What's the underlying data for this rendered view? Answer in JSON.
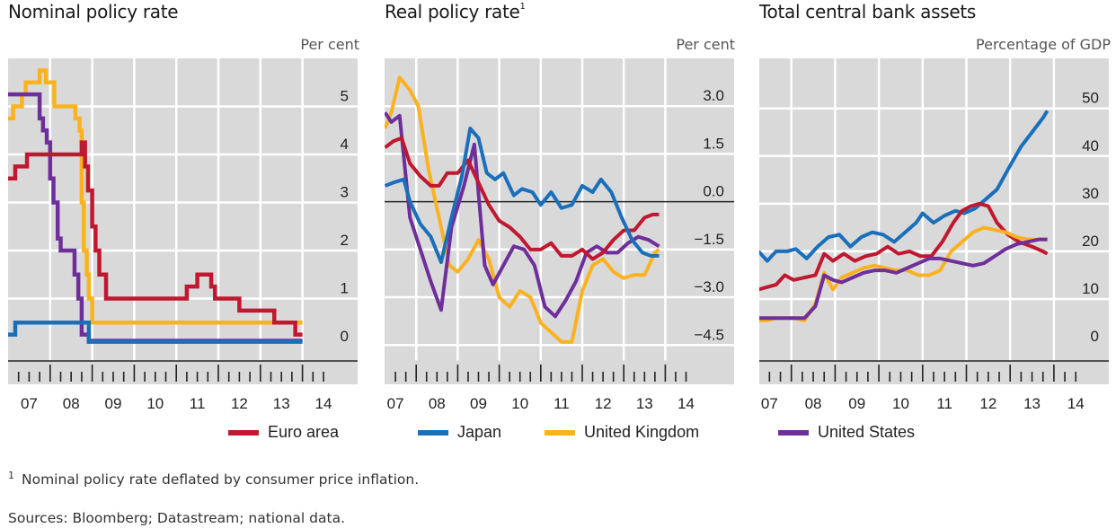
{
  "footnote_marker": "1",
  "footnote": "Nominal policy rate deflated by consumer price inflation.",
  "sources": "Sources: Bloomberg; Datastream; national data.",
  "legend": [
    {
      "name": "Euro area",
      "color": "#c0182f"
    },
    {
      "name": "Japan",
      "color": "#1a6fba"
    },
    {
      "name": "United Kingdom",
      "color": "#fbb21f"
    },
    {
      "name": "United States",
      "color": "#6f2f9b"
    }
  ],
  "chart_data": [
    {
      "type": "line",
      "step": true,
      "title": "Nominal policy rate",
      "title_sup": "",
      "unit": "Per cent",
      "x_tick_labels": [
        "07",
        "08",
        "09",
        "10",
        "11",
        "12",
        "13",
        "14"
      ],
      "xlim": [
        2007.0,
        2014.25
      ],
      "ylim": [
        -0.3,
        6.0
      ],
      "yticks": [
        0,
        1,
        2,
        3,
        4,
        5
      ],
      "ytick_labels": [
        "0",
        "1",
        "2",
        "3",
        "4",
        "5"
      ],
      "zero_line": -0.25,
      "series": [
        {
          "name": "United Kingdom",
          "color": "#fbb21f",
          "x": [
            2007.0,
            2007.12,
            2007.33,
            2007.42,
            2007.75,
            2007.9,
            2008.1,
            2008.6,
            2008.7,
            2008.75,
            2008.8,
            2008.87,
            2008.92,
            2009.0,
            2009.17,
            2014.0
          ],
          "y": [
            4.75,
            5.0,
            5.25,
            5.5,
            5.75,
            5.5,
            5.0,
            4.75,
            4.5,
            3.0,
            2.0,
            1.5,
            1.0,
            0.5,
            0.5,
            0.5
          ]
        },
        {
          "name": "United States",
          "color": "#6f2f9b",
          "x": [
            2007.0,
            2007.62,
            2007.75,
            2007.83,
            2007.92,
            2008.0,
            2008.08,
            2008.18,
            2008.25,
            2008.33,
            2008.58,
            2008.67,
            2008.75,
            2008.92,
            2009.0,
            2014.0
          ],
          "y": [
            5.25,
            5.25,
            4.75,
            4.5,
            4.25,
            3.5,
            3.0,
            2.25,
            2.0,
            2.0,
            1.5,
            1.0,
            0.25,
            0.12,
            0.12,
            0.12
          ]
        },
        {
          "name": "Euro area",
          "color": "#c0182f",
          "x": [
            2007.0,
            2007.17,
            2007.45,
            2008.5,
            2008.75,
            2008.83,
            2008.9,
            2009.0,
            2009.08,
            2009.17,
            2009.33,
            2011.25,
            2011.5,
            2011.83,
            2011.92,
            2012.5,
            2013.33,
            2013.83,
            2014.0
          ],
          "y": [
            3.5,
            3.75,
            4.0,
            4.0,
            4.25,
            3.75,
            3.25,
            2.5,
            2.0,
            1.5,
            1.0,
            1.25,
            1.5,
            1.25,
            1.0,
            0.75,
            0.5,
            0.25,
            0.25
          ]
        },
        {
          "name": "Japan",
          "color": "#1a6fba",
          "x": [
            2007.0,
            2007.17,
            2008.83,
            2008.92,
            2014.0
          ],
          "y": [
            0.25,
            0.5,
            0.5,
            0.1,
            0.1
          ]
        }
      ]
    },
    {
      "type": "line",
      "step": false,
      "title": "Real policy rate",
      "title_sup": "1",
      "unit": "Per cent",
      "x_tick_labels": [
        "07",
        "08",
        "09",
        "10",
        "11",
        "12",
        "13",
        "14"
      ],
      "xlim": [
        2007.25,
        2014.58
      ],
      "ylim": [
        -5.0,
        4.5
      ],
      "yticks": [
        -4.5,
        -3.0,
        -1.5,
        0.0,
        1.5,
        3.0
      ],
      "ytick_labels": [
        "−4.5",
        "−3.0",
        "−1.5",
        "0.0",
        "1.5",
        "3.0"
      ],
      "zero_line": 0.0,
      "series": [
        {
          "name": "United Kingdom",
          "color": "#fbb21f",
          "x": [
            2007.25,
            2007.4,
            2007.6,
            2007.85,
            2008.05,
            2008.3,
            2008.55,
            2008.8,
            2009.0,
            2009.25,
            2009.5,
            2009.75,
            2010.0,
            2010.25,
            2010.5,
            2010.75,
            2011.0,
            2011.25,
            2011.5,
            2011.75,
            2012.0,
            2012.25,
            2012.5,
            2012.75,
            2013.0,
            2013.25,
            2013.5,
            2013.75,
            2013.85
          ],
          "y": [
            2.3,
            2.8,
            3.9,
            3.5,
            3.0,
            1.0,
            -0.5,
            -2.0,
            -2.2,
            -1.8,
            -1.2,
            -1.8,
            -3.0,
            -3.3,
            -2.8,
            -3.0,
            -3.8,
            -4.1,
            -4.4,
            -4.4,
            -2.8,
            -2.0,
            -1.8,
            -2.2,
            -2.4,
            -2.3,
            -2.3,
            -1.6,
            -1.5
          ]
        },
        {
          "name": "United States",
          "color": "#6f2f9b",
          "x": [
            2007.25,
            2007.4,
            2007.6,
            2007.85,
            2008.1,
            2008.35,
            2008.6,
            2008.85,
            2009.15,
            2009.4,
            2009.65,
            2009.85,
            2010.1,
            2010.35,
            2010.6,
            2010.85,
            2011.1,
            2011.35,
            2011.6,
            2011.85,
            2012.1,
            2012.35,
            2012.6,
            2012.85,
            2013.1,
            2013.35,
            2013.6,
            2013.85
          ],
          "y": [
            2.8,
            2.5,
            2.7,
            -0.5,
            -1.5,
            -2.5,
            -3.4,
            -0.8,
            0.5,
            1.8,
            -2.0,
            -2.6,
            -2.0,
            -1.4,
            -1.5,
            -2.0,
            -3.3,
            -3.6,
            -3.1,
            -2.5,
            -1.6,
            -1.4,
            -1.6,
            -1.6,
            -1.3,
            -1.1,
            -1.2,
            -1.4
          ]
        },
        {
          "name": "Euro area",
          "color": "#c0182f",
          "x": [
            2007.25,
            2007.45,
            2007.65,
            2007.85,
            2008.1,
            2008.35,
            2008.55,
            2008.75,
            2009.0,
            2009.25,
            2009.5,
            2009.75,
            2010.0,
            2010.25,
            2010.5,
            2010.75,
            2011.0,
            2011.25,
            2011.5,
            2011.75,
            2012.0,
            2012.25,
            2012.5,
            2012.75,
            2013.0,
            2013.25,
            2013.5,
            2013.7,
            2013.85
          ],
          "y": [
            1.7,
            1.9,
            2.0,
            1.2,
            0.8,
            0.5,
            0.5,
            0.9,
            0.9,
            1.3,
            0.6,
            -0.1,
            -0.6,
            -0.8,
            -1.1,
            -1.5,
            -1.5,
            -1.3,
            -1.7,
            -1.7,
            -1.5,
            -1.8,
            -1.6,
            -1.2,
            -0.9,
            -0.9,
            -0.5,
            -0.4,
            -0.4
          ]
        },
        {
          "name": "Japan",
          "color": "#1a6fba",
          "x": [
            2007.25,
            2007.45,
            2007.7,
            2007.85,
            2008.1,
            2008.35,
            2008.6,
            2008.85,
            2009.1,
            2009.3,
            2009.5,
            2009.7,
            2009.9,
            2010.1,
            2010.35,
            2010.55,
            2010.8,
            2011.0,
            2011.25,
            2011.5,
            2011.75,
            2012.0,
            2012.25,
            2012.45,
            2012.7,
            2012.95,
            2013.2,
            2013.45,
            2013.65,
            2013.85
          ],
          "y": [
            0.5,
            0.6,
            0.7,
            0.0,
            -0.7,
            -1.1,
            -1.9,
            -0.5,
            0.8,
            2.3,
            2.0,
            0.9,
            0.7,
            0.9,
            0.2,
            0.4,
            0.3,
            -0.1,
            0.3,
            -0.2,
            -0.1,
            0.5,
            0.3,
            0.7,
            0.3,
            -0.5,
            -1.2,
            -1.6,
            -1.7,
            -1.7
          ]
        }
      ]
    },
    {
      "type": "line",
      "step": false,
      "title": "Total central bank assets",
      "title_sup": "",
      "unit": "Percentage of GDP",
      "x_tick_labels": [
        "07",
        "08",
        "09",
        "10",
        "11",
        "12",
        "13",
        "14"
      ],
      "xlim": [
        2007.25,
        2014.58
      ],
      "ylim": [
        -3.0,
        60.5
      ],
      "yticks": [
        0,
        10,
        20,
        30,
        40,
        50
      ],
      "ytick_labels": [
        "0",
        "10",
        "20",
        "30",
        "40",
        "50"
      ],
      "zero_line": -3.0,
      "series": [
        {
          "name": "Japan",
          "color": "#1a6fba",
          "x": [
            2007.25,
            2007.45,
            2007.65,
            2007.9,
            2008.1,
            2008.35,
            2008.6,
            2008.85,
            2009.1,
            2009.35,
            2009.6,
            2009.85,
            2010.1,
            2010.35,
            2010.6,
            2010.85,
            2011.0,
            2011.25,
            2011.5,
            2011.75,
            2011.95,
            2012.2,
            2012.45,
            2012.7,
            2013.0,
            2013.25,
            2013.5,
            2013.75,
            2013.85
          ],
          "y": [
            20,
            18,
            20,
            20,
            20.5,
            18.5,
            21,
            23,
            23.5,
            21,
            23,
            24,
            23.5,
            22,
            24,
            26,
            28,
            26,
            27.5,
            28.5,
            28,
            29,
            31,
            33,
            38,
            42,
            45,
            48,
            49.5
          ]
        },
        {
          "name": "Euro area",
          "color": "#c0182f",
          "x": [
            2007.25,
            2007.45,
            2007.65,
            2007.85,
            2008.05,
            2008.3,
            2008.55,
            2008.75,
            2008.95,
            2009.2,
            2009.45,
            2009.7,
            2009.95,
            2010.2,
            2010.45,
            2010.7,
            2010.95,
            2011.2,
            2011.45,
            2011.7,
            2011.9,
            2012.1,
            2012.3,
            2012.5,
            2012.7,
            2012.95,
            2013.2,
            2013.5,
            2013.75,
            2013.85
          ],
          "y": [
            12,
            12.5,
            13,
            15,
            14,
            14.5,
            15,
            19.5,
            18,
            19.5,
            18,
            19,
            19.5,
            21,
            19.5,
            20,
            19,
            19,
            22,
            26,
            28.5,
            29.5,
            30,
            29.5,
            26,
            23.5,
            22,
            21,
            20,
            19.5
          ]
        },
        {
          "name": "United Kingdom",
          "color": "#fbb21f",
          "x": [
            2007.25,
            2007.45,
            2007.65,
            2007.85,
            2008.05,
            2008.3,
            2008.55,
            2008.75,
            2008.95,
            2009.15,
            2009.4,
            2009.65,
            2009.9,
            2010.15,
            2010.4,
            2010.65,
            2010.9,
            2011.15,
            2011.4,
            2011.65,
            2011.9,
            2012.15,
            2012.4,
            2012.65,
            2012.9,
            2013.15,
            2013.4,
            2013.65,
            2013.85
          ],
          "y": [
            5.5,
            5.5,
            6,
            6,
            6,
            5.5,
            9,
            15.5,
            12,
            14.5,
            15.5,
            16.5,
            17,
            16.5,
            16,
            16,
            15,
            15,
            16,
            20,
            22,
            24,
            25,
            24.5,
            24,
            23,
            22.5,
            22.5,
            22.5
          ]
        },
        {
          "name": "United States",
          "color": "#6f2f9b",
          "x": [
            2007.25,
            2007.45,
            2007.65,
            2007.85,
            2008.05,
            2008.3,
            2008.55,
            2008.75,
            2008.95,
            2009.15,
            2009.4,
            2009.65,
            2009.9,
            2010.15,
            2010.4,
            2010.65,
            2010.9,
            2011.15,
            2011.4,
            2011.65,
            2011.9,
            2012.15,
            2012.4,
            2012.65,
            2012.9,
            2013.15,
            2013.4,
            2013.65,
            2013.85
          ],
          "y": [
            6,
            6,
            6,
            6,
            6,
            6,
            8.5,
            15,
            14,
            13.5,
            14.5,
            15.5,
            16,
            16,
            15.5,
            16.5,
            17.5,
            18.5,
            18.5,
            18,
            17.5,
            17,
            17.5,
            19,
            20.5,
            21.5,
            22,
            22.5,
            22.5
          ]
        }
      ]
    }
  ]
}
